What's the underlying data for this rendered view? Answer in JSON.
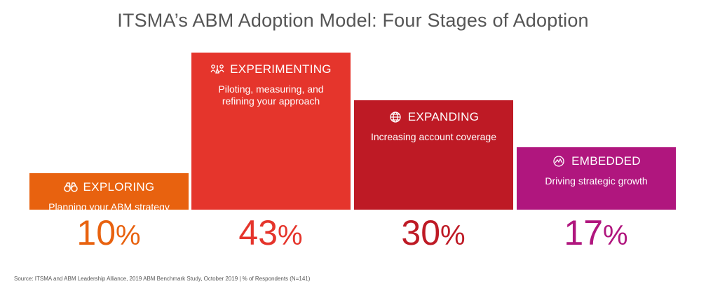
{
  "title": "ITSMA’s ABM Adoption Model: Four Stages of Adoption",
  "chart_data": {
    "type": "bar",
    "unit": "%",
    "categories": [
      "EXPLORING",
      "EXPERIMENTING",
      "EXPANDING",
      "EMBEDDED"
    ],
    "values": [
      10,
      43,
      30,
      17
    ],
    "descriptions": [
      "Planning your ABM strategy",
      "Piloting, measuring, and refining your approach",
      "Increasing account coverage",
      "Driving strategic growth"
    ],
    "icons": [
      "binoculars-icon",
      "people-experiment-icon",
      "globe-icon",
      "growth-icon"
    ],
    "colors": [
      "#E8620F",
      "#E5352C",
      "#BE1A25",
      "#B0167E"
    ],
    "value_labels": [
      "10",
      "43",
      "30",
      "17"
    ],
    "value_suffix": "%"
  },
  "source": "Source: ITSMA and ABM Leadership Alliance, 2019 ABM Benchmark Study, October 2019 | % of Respondents (N=141)"
}
